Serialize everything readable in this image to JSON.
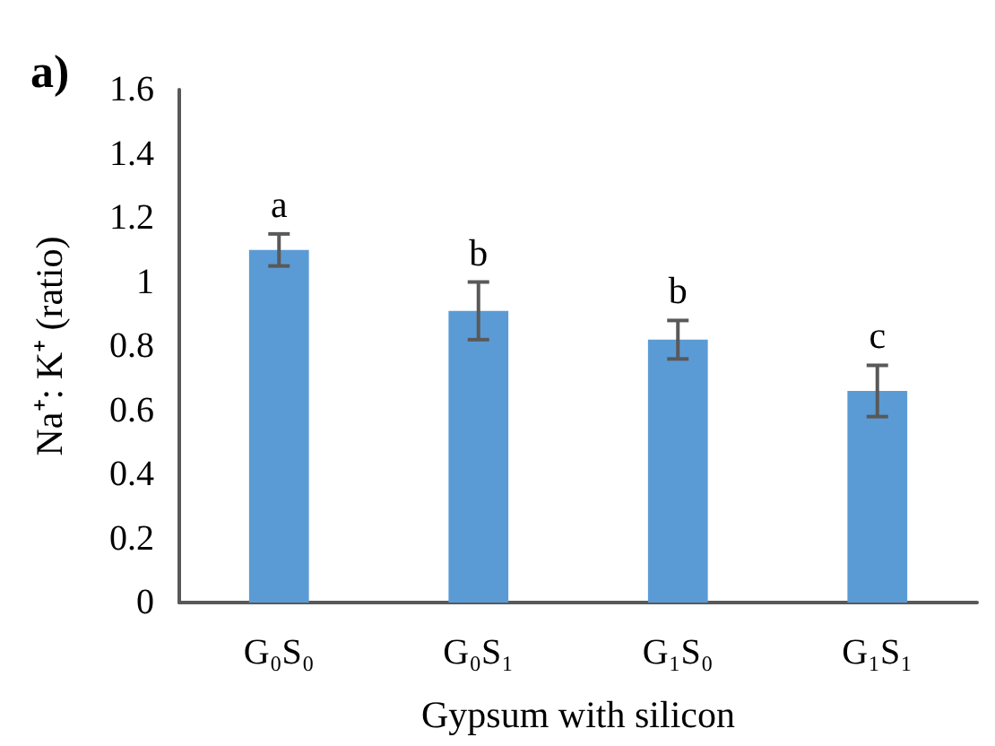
{
  "chart_data": {
    "type": "bar",
    "xlabel": "Gypsum with silicon",
    "ylabel": "Na⁺: K⁺ (ratio)",
    "categories": [
      "G₀S₀",
      "G₀S₁",
      "G₁S₀",
      "G₁S₁"
    ],
    "values": [
      1.1,
      0.91,
      0.82,
      0.66
    ],
    "errors": [
      0.05,
      0.09,
      0.06,
      0.08
    ],
    "color": "#5b9bd5",
    "ylim": [
      0,
      1.6
    ],
    "yticks": [
      0,
      0.2,
      0.4,
      0.6,
      0.8,
      1,
      1.2,
      1.4,
      1.6
    ],
    "grid": false,
    "annotations": [
      "a)",
      "a",
      "b",
      "b",
      "c"
    ]
  }
}
